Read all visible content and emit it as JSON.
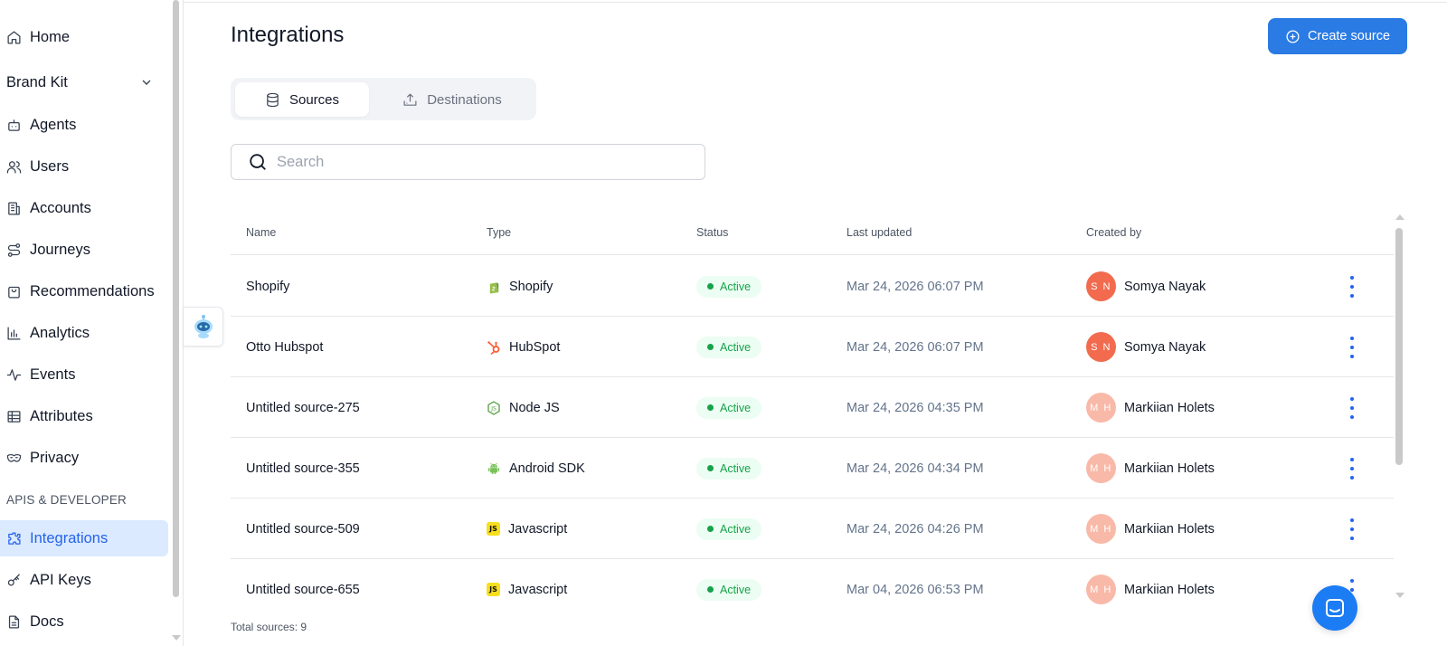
{
  "sidebar": {
    "items": [
      {
        "label": "Home",
        "icon": "home-icon"
      },
      {
        "label": "Brand Kit",
        "icon": "chevron-down-icon"
      },
      {
        "label": "Agents",
        "icon": "bot-icon"
      },
      {
        "label": "Users",
        "icon": "users-icon"
      },
      {
        "label": "Accounts",
        "icon": "building-icon"
      },
      {
        "label": "Journeys",
        "icon": "route-icon"
      },
      {
        "label": "Recommendations",
        "icon": "shopping-bag-icon"
      },
      {
        "label": "Analytics",
        "icon": "bar-chart-icon"
      },
      {
        "label": "Events",
        "icon": "activity-icon"
      },
      {
        "label": "Attributes",
        "icon": "table-icon"
      },
      {
        "label": "Privacy",
        "icon": "mask-icon"
      }
    ],
    "section_label": "APIS & DEVELOPER",
    "dev_items": [
      {
        "label": "Integrations",
        "icon": "puzzle-icon",
        "active": true
      },
      {
        "label": "API Keys",
        "icon": "key-icon"
      },
      {
        "label": "Docs",
        "icon": "file-text-icon"
      }
    ]
  },
  "header": {
    "title": "Integrations",
    "create_button": "Create source"
  },
  "tabs": [
    {
      "label": "Sources",
      "icon": "database-icon",
      "active": true
    },
    {
      "label": "Destinations",
      "icon": "upload-icon",
      "active": false
    }
  ],
  "search": {
    "placeholder": "Search",
    "value": ""
  },
  "table": {
    "columns": [
      "Name",
      "Type",
      "Status",
      "Last updated",
      "Created by"
    ],
    "rows": [
      {
        "name": "Shopify",
        "type": "Shopify",
        "type_icon": "shopify-icon",
        "status": "Active",
        "updated": "Mar 24, 2026 06:07 PM",
        "initials": "S N",
        "creator": "Somya Nayak"
      },
      {
        "name": "Otto Hubspot",
        "type": "HubSpot",
        "type_icon": "hubspot-icon",
        "status": "Active",
        "updated": "Mar 24, 2026 06:07 PM",
        "initials": "S N",
        "creator": "Somya Nayak"
      },
      {
        "name": "Untitled source-275",
        "type": "Node JS",
        "type_icon": "nodejs-icon",
        "status": "Active",
        "updated": "Mar 24, 2026 04:35 PM",
        "initials": "M H",
        "creator": "Markiian Holets"
      },
      {
        "name": "Untitled source-355",
        "type": "Android SDK",
        "type_icon": "android-icon",
        "status": "Active",
        "updated": "Mar 24, 2026 04:34 PM",
        "initials": "M H",
        "creator": "Markiian Holets"
      },
      {
        "name": "Untitled source-509",
        "type": "Javascript",
        "type_icon": "javascript-icon",
        "status": "Active",
        "updated": "Mar 24, 2026 04:26 PM",
        "initials": "M H",
        "creator": "Markiian Holets"
      },
      {
        "name": "Untitled source-655",
        "type": "Javascript",
        "type_icon": "javascript-icon",
        "status": "Active",
        "updated": "Mar 04, 2026 06:53 PM",
        "initials": "M H",
        "creator": "Markiian Holets"
      }
    ],
    "js_badge": "JS"
  },
  "footer": {
    "total": "Total sources: 9"
  },
  "colors": {
    "accent": "#2a7be4",
    "active_green": "#16a34a",
    "avatar_dark": "#f26b4f",
    "avatar_light": "#f9b9a8"
  }
}
